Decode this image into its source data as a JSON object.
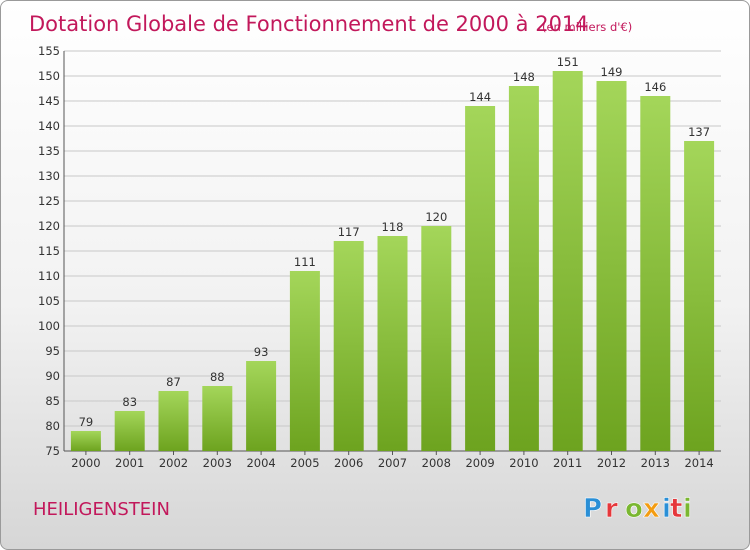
{
  "title": "Dotation Globale de Fonctionnement de 2000 à 2014",
  "subtitle": "(en milliers d'€)",
  "commune": "HEILIGENSTEIN",
  "logo": {
    "letters": [
      "P",
      "r",
      "o",
      "x",
      "i",
      "t",
      "i"
    ],
    "colors": [
      "#2a8fd6",
      "#e5373b",
      "#7ab731",
      "#f39c12",
      "#2a8fd6",
      "#e5373b",
      "#7ab731"
    ]
  },
  "colors": {
    "bar_light": "#a4d65a",
    "bar_dark": "#6da31f",
    "accent": "#c2185b"
  },
  "chart_data": {
    "type": "bar",
    "categories": [
      "2000",
      "2001",
      "2002",
      "2003",
      "2004",
      "2005",
      "2006",
      "2007",
      "2008",
      "2009",
      "2010",
      "2011",
      "2012",
      "2013",
      "2014"
    ],
    "values": [
      79,
      83,
      87,
      88,
      93,
      111,
      117,
      118,
      120,
      144,
      148,
      151,
      149,
      146,
      137
    ],
    "ylim": [
      75,
      155
    ],
    "yticks": [
      75,
      80,
      85,
      90,
      95,
      100,
      105,
      110,
      115,
      120,
      125,
      130,
      135,
      140,
      145,
      150,
      155
    ],
    "grid": true,
    "legend": "none"
  }
}
